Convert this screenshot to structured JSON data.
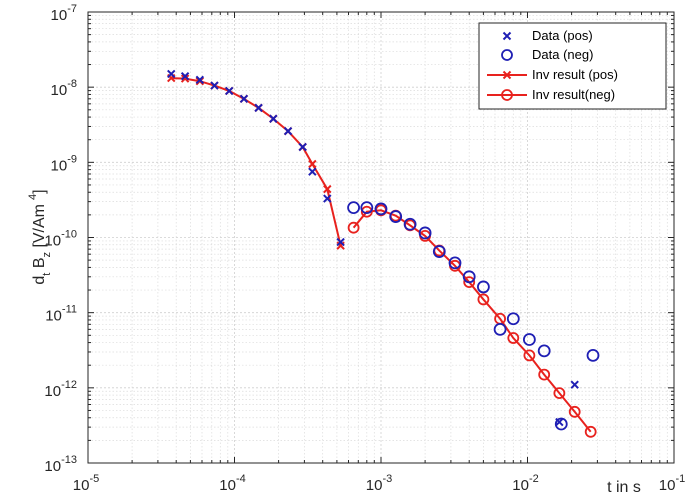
{
  "chart_data": {
    "type": "scatter",
    "xscale": "log",
    "yscale": "log",
    "xlim": [
      1e-05,
      0.1
    ],
    "ylim": [
      1e-13,
      1e-07
    ],
    "x_tick_labels": [
      {
        "base": "10",
        "exp": "-5"
      },
      {
        "base": "10",
        "exp": "-4"
      },
      {
        "base": "10",
        "exp": "-3"
      },
      {
        "base": "10",
        "exp": "-2"
      },
      {
        "base": "10",
        "exp": "-1"
      }
    ],
    "y_tick_labels": [
      {
        "base": "10",
        "exp": "-13"
      },
      {
        "base": "10",
        "exp": "-12"
      },
      {
        "base": "10",
        "exp": "-11"
      },
      {
        "base": "10",
        "exp": "-10"
      },
      {
        "base": "10",
        "exp": "-9"
      },
      {
        "base": "10",
        "exp": "-8"
      },
      {
        "base": "10",
        "exp": "-7"
      }
    ],
    "xlabel": "t in s",
    "ylabel": {
      "a": "d",
      "a_sub": "t",
      "b": " B",
      "b_sub": "z",
      "c": " [V/Am",
      "c_sup": "4",
      "d": "]"
    },
    "grid": true,
    "minor_grid": true,
    "legend_position": "top-right",
    "series": [
      {
        "name": "Data (pos)",
        "marker": "x",
        "line": false,
        "color": "#1f1fb4",
        "x": [
          3.7e-05,
          4.6e-05,
          5.8e-05,
          7.3e-05,
          9.2e-05,
          0.000116,
          0.000146,
          0.000184,
          0.000232,
          0.000292,
          0.00034,
          0.00043,
          0.00053,
          0.0165,
          0.021
        ],
        "y": [
          1.5e-08,
          1.4e-08,
          1.25e-08,
          1.05e-08,
          8.9e-09,
          7e-09,
          5.3e-09,
          3.8e-09,
          2.6e-09,
          1.6e-09,
          7.5e-10,
          3.3e-10,
          8.7e-11,
          3.5e-13,
          1.1e-12
        ]
      },
      {
        "name": "Data (neg)",
        "marker": "o",
        "line": false,
        "color": "#1f1fb4",
        "x": [
          0.00065,
          0.0008,
          0.001,
          0.00126,
          0.00158,
          0.002,
          0.0025,
          0.0032,
          0.004,
          0.005,
          0.0065,
          0.008,
          0.0103,
          0.013,
          0.017,
          0.028
        ],
        "y": [
          2.5e-10,
          2.5e-10,
          2.4e-10,
          1.9e-10,
          1.5e-10,
          1.15e-10,
          6.5e-11,
          4.6e-11,
          3e-11,
          2.2e-11,
          6e-12,
          8.3e-12,
          4.4e-12,
          3.1e-12,
          3.3e-13,
          2.7e-12
        ]
      },
      {
        "name": "Inv result (pos)",
        "marker": "x",
        "line": true,
        "color": "#e8221e",
        "x": [
          3.7e-05,
          4.6e-05,
          5.8e-05,
          7.3e-05,
          9.2e-05,
          0.000116,
          0.000146,
          0.000184,
          0.000232,
          0.000292,
          0.00034,
          0.00043,
          0.00053
        ],
        "y": [
          1.32e-08,
          1.3e-08,
          1.2e-08,
          1.05e-08,
          8.9e-09,
          7e-09,
          5.3e-09,
          3.8e-09,
          2.6e-09,
          1.6e-09,
          9.5e-10,
          4.4e-10,
          7.8e-11
        ]
      },
      {
        "name": "Inv result(neg)",
        "marker": "o",
        "line": true,
        "color": "#e8221e",
        "x": [
          0.00065,
          0.0008,
          0.001,
          0.00126,
          0.00158,
          0.002,
          0.0025,
          0.0032,
          0.004,
          0.005,
          0.0065,
          0.008,
          0.0103,
          0.013,
          0.0165,
          0.021,
          0.027
        ],
        "y": [
          1.35e-10,
          2.2e-10,
          2.3e-10,
          1.95e-10,
          1.45e-10,
          1.05e-10,
          6.7e-11,
          4.2e-11,
          2.55e-11,
          1.5e-11,
          8.3e-12,
          4.6e-12,
          2.7e-12,
          1.5e-12,
          8.5e-13,
          4.8e-13,
          2.6e-13
        ]
      }
    ]
  }
}
